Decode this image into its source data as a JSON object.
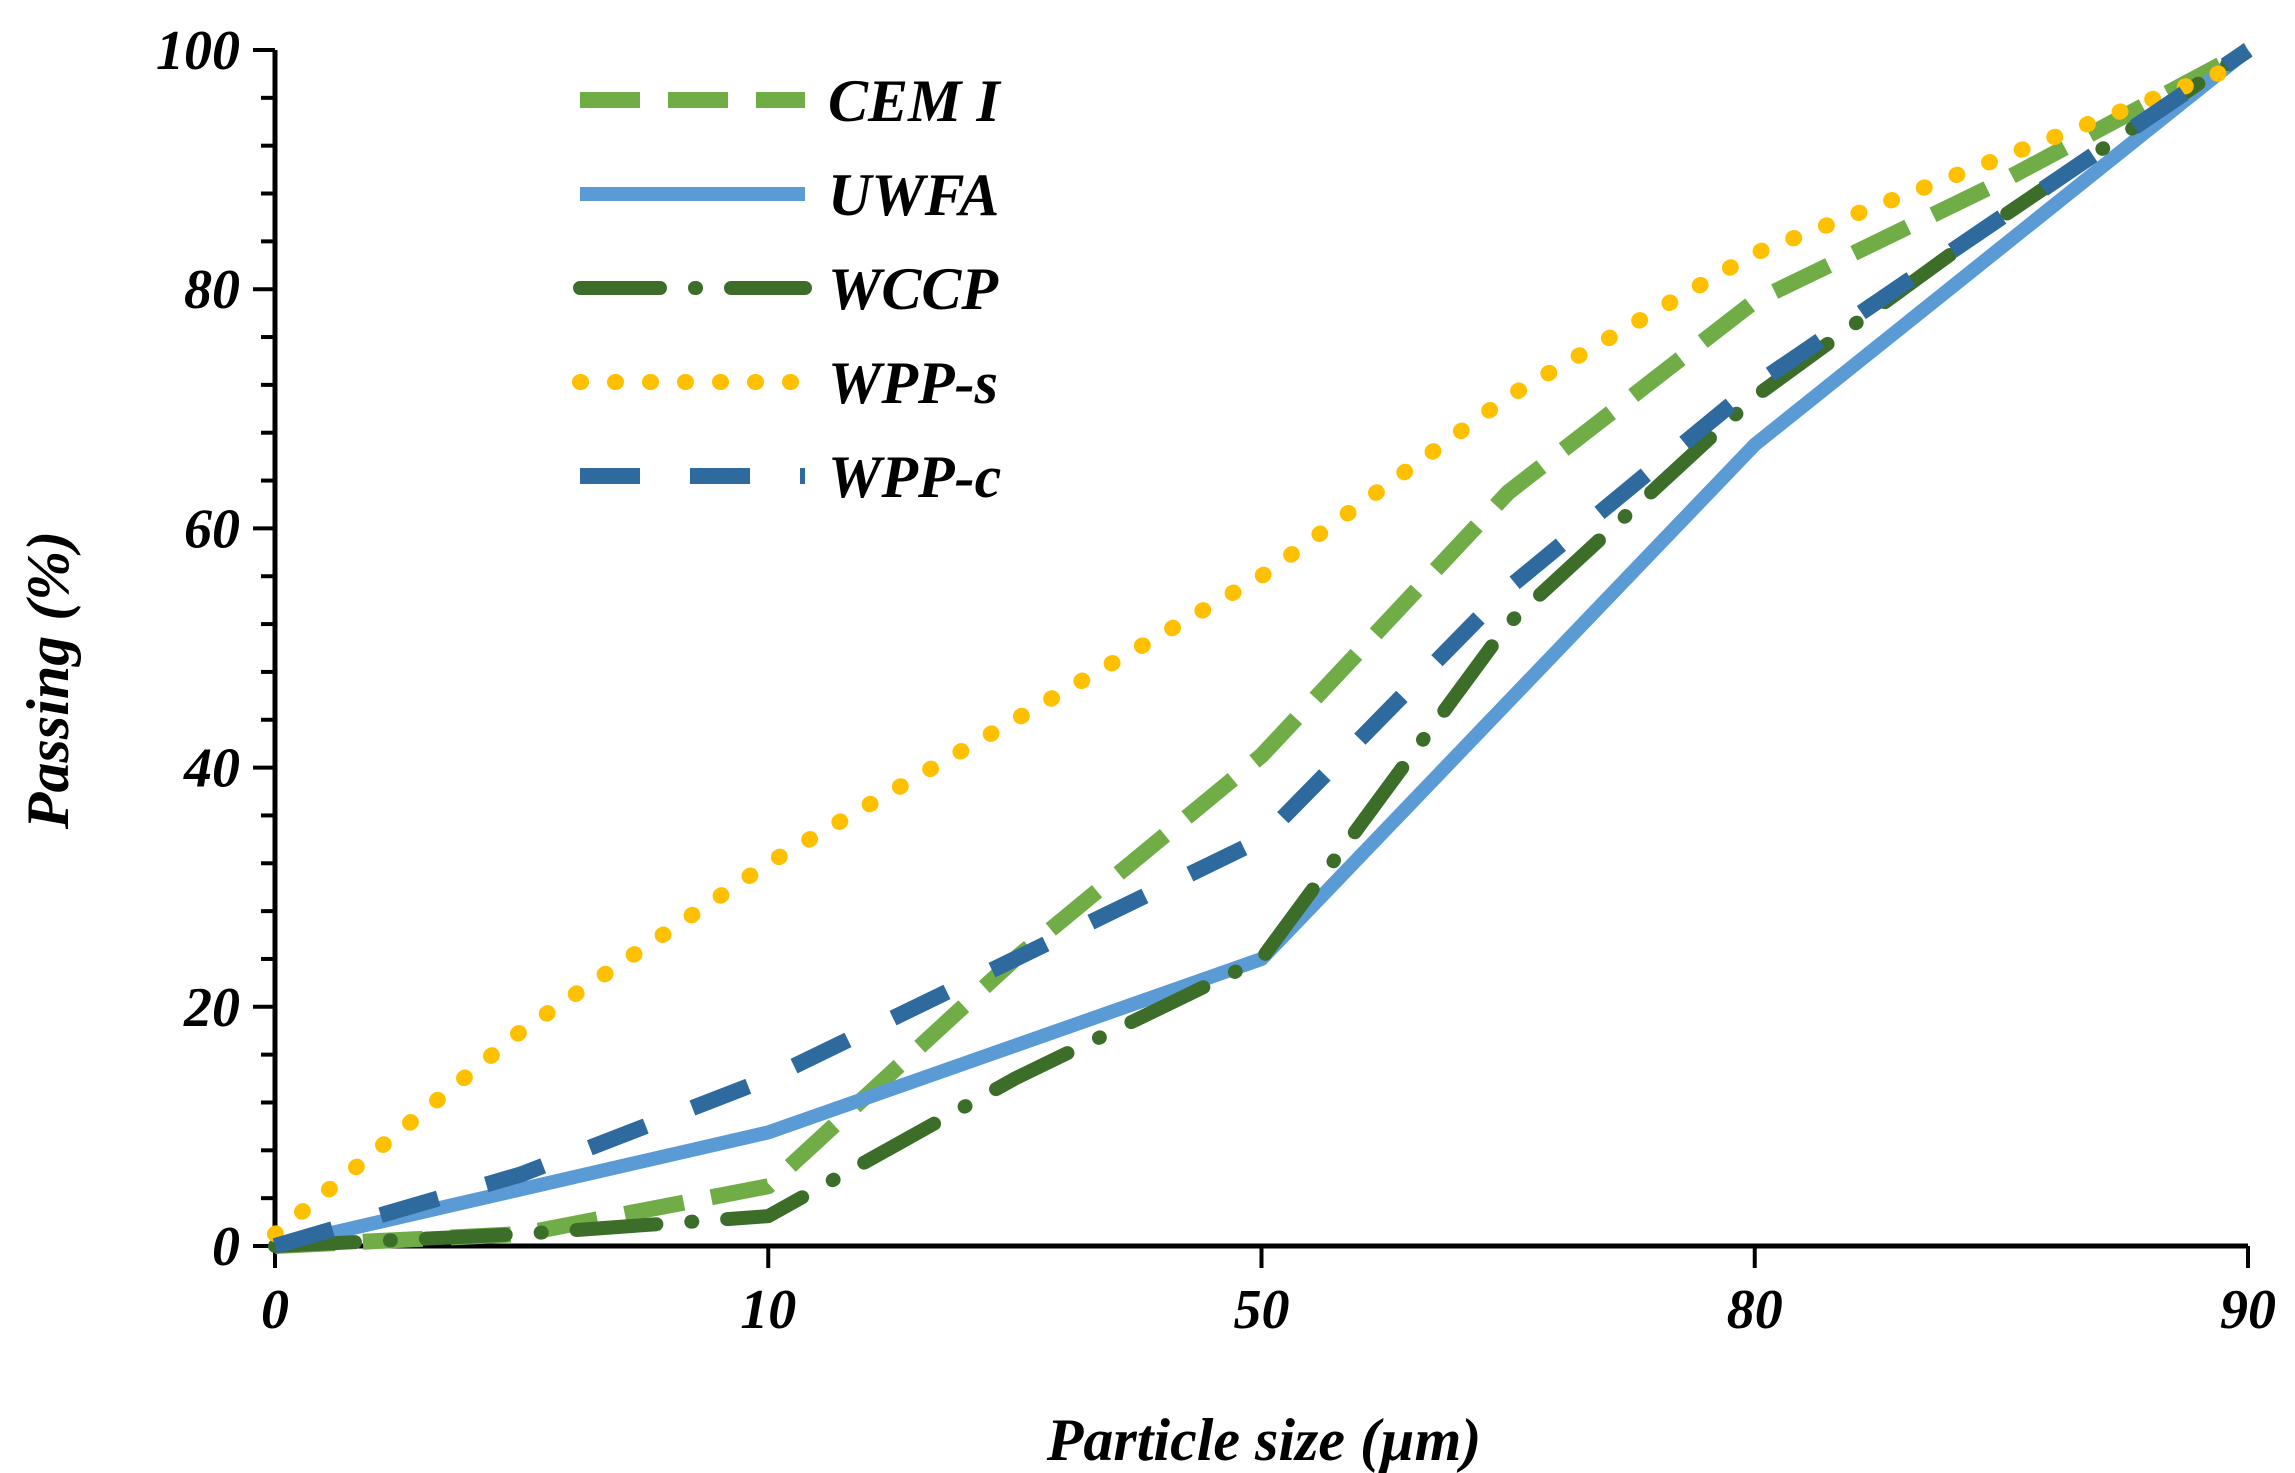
{
  "chart_data": {
    "type": "line",
    "title": "",
    "xlabel": "Particle size (µm)",
    "ylabel": "Passing (%)",
    "x_categories": [
      "0",
      "10",
      "50",
      "80",
      "90"
    ],
    "yticks": [
      "0",
      "20",
      "40",
      "60",
      "80",
      "100"
    ],
    "ylim": [
      0,
      100
    ],
    "grid": false,
    "legend_position": "top-left",
    "series": [
      {
        "name": "CEM I",
        "color": "#70AD47",
        "style": "dash",
        "x": [
          0,
          0.5,
          1,
          1.5,
          2,
          2.5,
          3,
          3.5,
          4
        ],
        "y": [
          0,
          1,
          5,
          24,
          41,
          63,
          79,
          89,
          100
        ]
      },
      {
        "name": "UWFA",
        "color": "#5B9BD5",
        "style": "solid",
        "x": [
          0,
          1,
          2,
          3,
          4
        ],
        "y": [
          0,
          9.5,
          24,
          67,
          100
        ]
      },
      {
        "name": "WCCP",
        "color": "#3C6E2A",
        "style": "dashdot",
        "x": [
          0,
          0.5,
          1,
          1.5,
          2,
          2.5,
          3,
          3.5,
          4
        ],
        "y": [
          0,
          1,
          2.5,
          14,
          24,
          52,
          71,
          86,
          100
        ]
      },
      {
        "name": "WPP-s",
        "color": "#FFC000",
        "style": "dot",
        "x": [
          0,
          0.5,
          1,
          1.5,
          2,
          2.5,
          3,
          3.5,
          4
        ],
        "y": [
          1,
          18,
          32,
          44,
          56,
          71,
          83,
          91,
          99
        ]
      },
      {
        "name": "WPP-c",
        "color": "#2E6A9E",
        "style": "longdash",
        "x": [
          0,
          0.5,
          1,
          1.5,
          2,
          2.5,
          3,
          3.5,
          4
        ],
        "y": [
          0,
          6,
          14,
          24,
          34,
          55,
          72,
          86,
          100
        ]
      }
    ]
  }
}
